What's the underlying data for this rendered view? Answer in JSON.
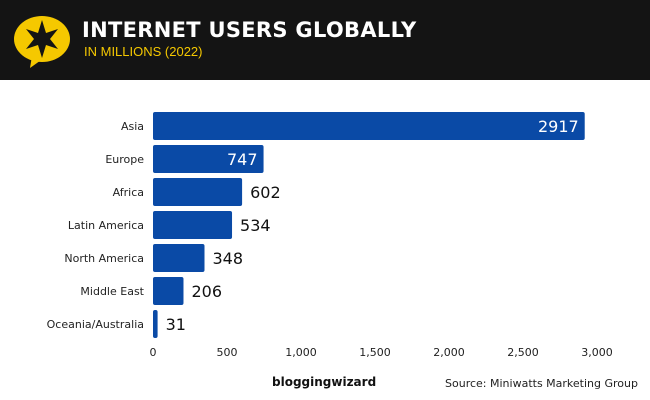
{
  "header": {
    "title": "INTERNET USERS GLOBALLY",
    "subtitle": "IN MILLIONS (2022)",
    "logo_icon": "star-speech-bubble-icon"
  },
  "colors": {
    "bar": "#0a4aa6",
    "header_bg": "#141414",
    "accent": "#f5c800"
  },
  "chart_data": {
    "type": "bar",
    "orientation": "horizontal",
    "title": "INTERNET USERS GLOBALLY",
    "subtitle": "IN MILLIONS (2022)",
    "categories": [
      "Asia",
      "Europe",
      "Africa",
      "Latin America",
      "North America",
      "Middle East",
      "Oceania/Australia"
    ],
    "values": [
      2917,
      747,
      602,
      534,
      348,
      206,
      31
    ],
    "xlim": [
      0,
      3000
    ],
    "xticks": [
      0,
      500,
      1000,
      1500,
      2000,
      2500,
      3000
    ],
    "xtick_labels": [
      "0",
      "500",
      "1,000",
      "1,500",
      "2,000",
      "2,500",
      "3,000"
    ],
    "grid": false
  },
  "footer": {
    "brand": "bloggingwizard",
    "source": "Source: Miniwatts Marketing Group"
  }
}
